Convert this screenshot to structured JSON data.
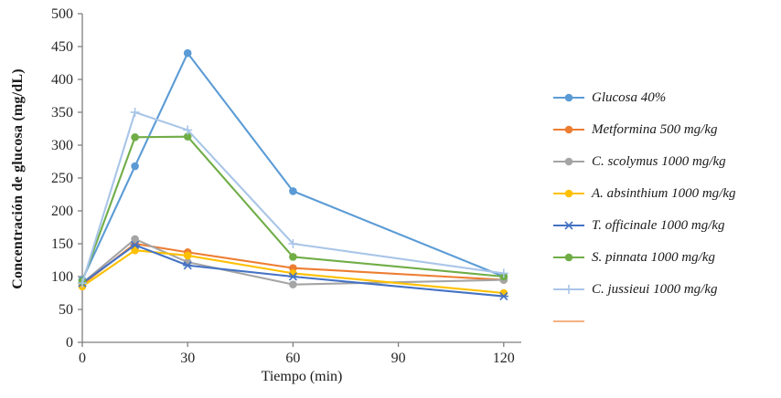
{
  "chart_data": {
    "type": "line",
    "title": "",
    "xlabel": "Tiempo (min)",
    "ylabel": "Concentración de glucosa (mg/dL)",
    "x": [
      0,
      15,
      30,
      60,
      120
    ],
    "xticks": [
      0,
      30,
      60,
      90,
      120
    ],
    "xlim": [
      0,
      125
    ],
    "ylim": [
      0,
      500
    ],
    "ytick_step": 50,
    "grid": false,
    "legend_position": "right",
    "axis_color": "#7f7f7f",
    "tick_label_color": "#262626",
    "series": [
      {
        "name": "Glucosa 40%",
        "color": "#5B9BD5",
        "marker": "circle",
        "values": [
          95,
          268,
          440,
          230,
          100
        ]
      },
      {
        "name": "Metformina 500 mg/kg",
        "color": "#ED7D31",
        "marker": "circle",
        "values": [
          88,
          150,
          137,
          113,
          95
        ]
      },
      {
        "name": "C. scolymus 1000 mg/kg",
        "color": "#A5A5A5",
        "marker": "circle",
        "values": [
          90,
          157,
          122,
          88,
          95
        ]
      },
      {
        "name": "A. absinthium 1000 mg/kg",
        "color": "#FFC000",
        "marker": "circle",
        "values": [
          85,
          140,
          132,
          105,
          75
        ]
      },
      {
        "name": "T. officinale 1000 mg/kg",
        "color": "#4472C4",
        "marker": "asterisk",
        "values": [
          90,
          148,
          117,
          100,
          70
        ]
      },
      {
        "name": "S. pinnata 1000 mg/kg",
        "color": "#70AD47",
        "marker": "circle",
        "values": [
          93,
          312,
          313,
          130,
          100
        ]
      },
      {
        "name": "C. jussieui  1000 mg/kg",
        "color": "#A9C5E8",
        "marker": "plus",
        "values": [
          90,
          350,
          323,
          150,
          105
        ]
      },
      {
        "name": "",
        "color": "#F4B183",
        "marker": "none",
        "values": []
      }
    ]
  }
}
